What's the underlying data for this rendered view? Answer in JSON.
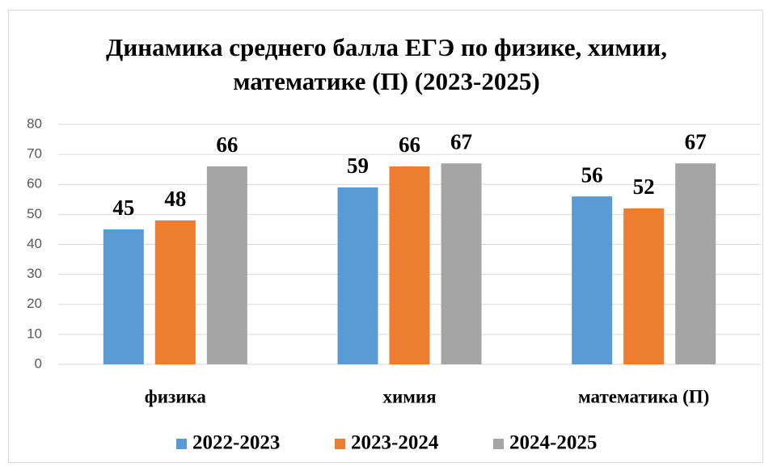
{
  "chart_data": {
    "type": "bar",
    "title": "Динамика среднего балла ЕГЭ по физике, химии, математике (П) (2023-2025)",
    "categories": [
      "физика",
      "химия",
      "математика  (П)"
    ],
    "series": [
      {
        "name": "2022-2023",
        "color": "#5b9bd5",
        "values": [
          45,
          59,
          56
        ]
      },
      {
        "name": "2023-2024",
        "color": "#ed7d31",
        "values": [
          48,
          66,
          52
        ]
      },
      {
        "name": "2024-2025",
        "color": "#a5a5a5",
        "values": [
          66,
          67,
          67
        ]
      }
    ],
    "ylim": [
      0,
      80
    ],
    "yticks": [
      0,
      10,
      20,
      30,
      40,
      50,
      60,
      70,
      80
    ],
    "grid": true,
    "legend": "bottom"
  }
}
